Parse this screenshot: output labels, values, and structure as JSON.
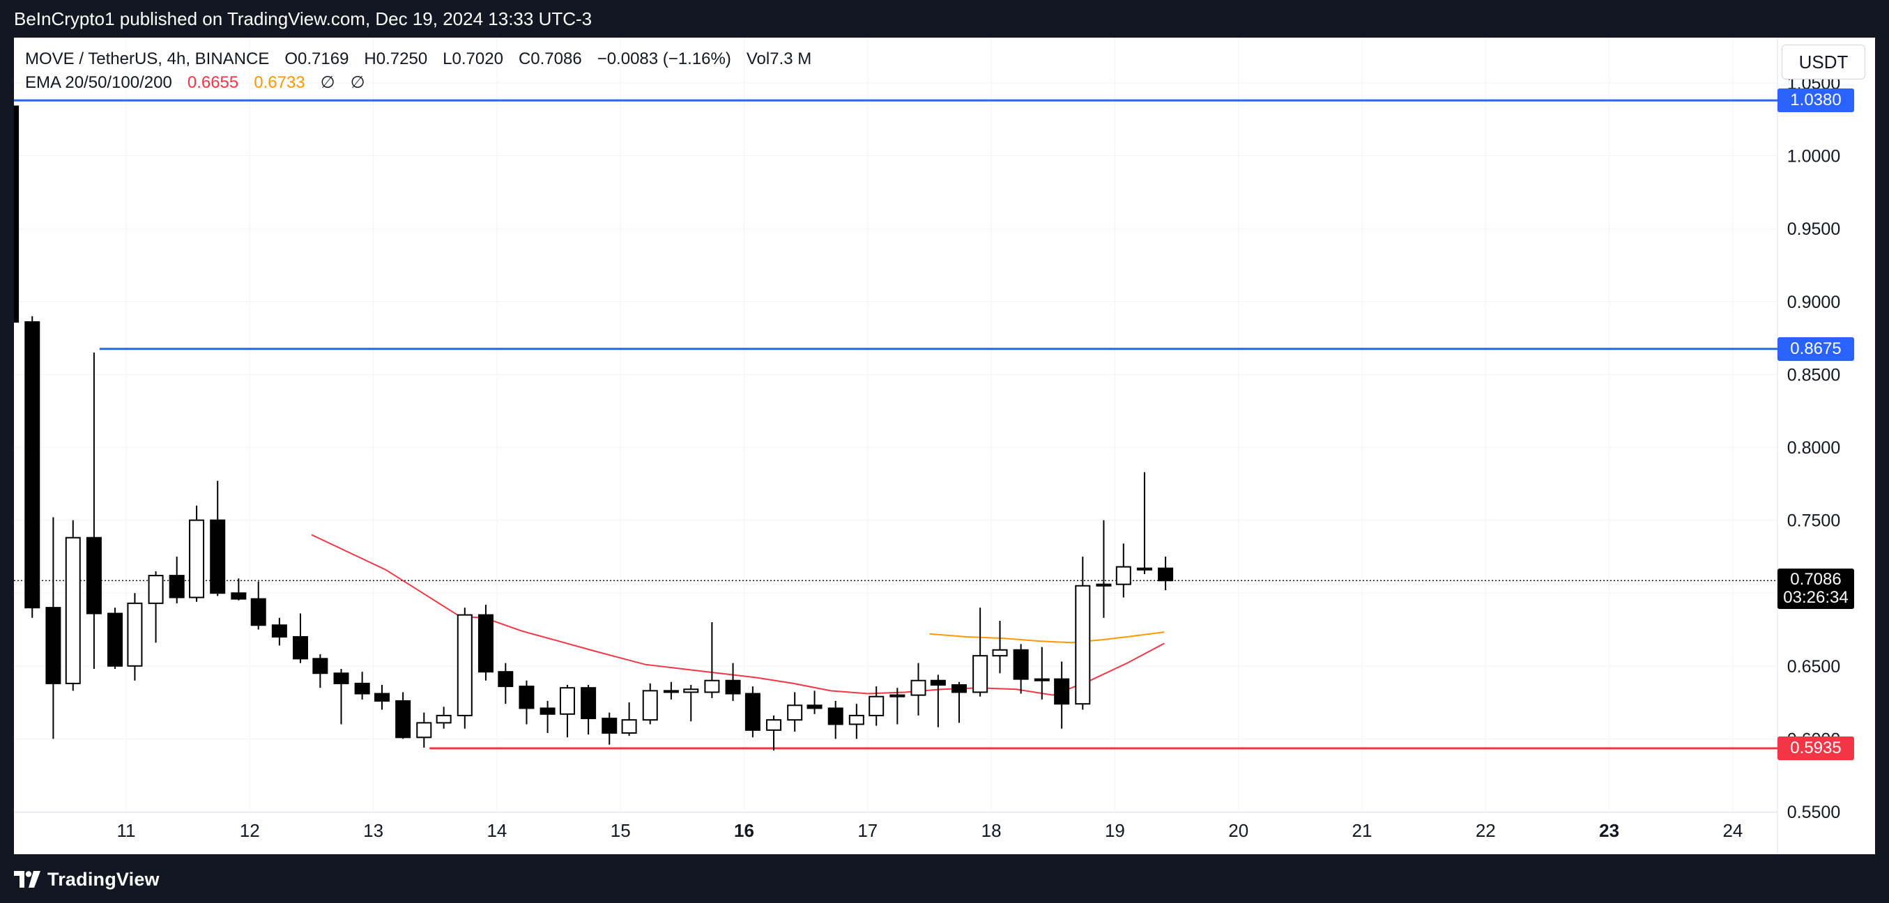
{
  "header": {
    "publish_text": "BeInCrypto1 published on TradingView.com, Dec 19, 2024 13:33 UTC-3"
  },
  "footer": {
    "brand": "TradingView"
  },
  "legend": {
    "symbol": "MOVE / TetherUS, 4h, BINANCE",
    "open": "O0.7169",
    "high": "H0.7250",
    "low": "L0.7020",
    "close": "C0.7086",
    "change": "−0.0083 (−1.16%)",
    "volume": "Vol7.3 M",
    "ema_label": "EMA 20/50/100/200",
    "ema20": "0.6655",
    "ema50": "0.6733",
    "ema100": "∅",
    "ema200": "∅"
  },
  "currency_button": "USDT",
  "price_tags": {
    "resistance_high": "1.0380",
    "resistance_mid": "0.8675",
    "current_price": "0.7086",
    "countdown": "03:26:34",
    "support": "0.5935"
  },
  "colors": {
    "up_candle": "#ffffff",
    "down_candle": "#000000",
    "resistance_line": "#2962ff",
    "support_line": "#f23645",
    "ema20": "#f23645",
    "ema50": "#ff9800"
  },
  "chart_data": {
    "type": "candlestick",
    "ylim": [
      0.54,
      1.06
    ],
    "xlim": [
      10.0,
      24.4
    ],
    "y_ticks": [
      "0.5500",
      "0.6000",
      "0.6500",
      "0.7000",
      "0.7500",
      "0.8000",
      "0.8500",
      "0.9000",
      "0.9500",
      "1.0000",
      "1.0500"
    ],
    "x_ticks": [
      {
        "label": "11",
        "x": 11,
        "bold": false
      },
      {
        "label": "12",
        "x": 12,
        "bold": false
      },
      {
        "label": "13",
        "x": 13,
        "bold": false
      },
      {
        "label": "14",
        "x": 14,
        "bold": false
      },
      {
        "label": "15",
        "x": 15,
        "bold": false
      },
      {
        "label": "16",
        "x": 16,
        "bold": true
      },
      {
        "label": "17",
        "x": 17,
        "bold": false
      },
      {
        "label": "18",
        "x": 18,
        "bold": false
      },
      {
        "label": "19",
        "x": 19,
        "bold": false
      },
      {
        "label": "20",
        "x": 20,
        "bold": false
      },
      {
        "label": "21",
        "x": 21,
        "bold": false
      },
      {
        "label": "22",
        "x": 22,
        "bold": false
      },
      {
        "label": "23",
        "x": 23,
        "bold": true
      },
      {
        "label": "24",
        "x": 24,
        "bold": false
      }
    ],
    "horizontal_levels": [
      {
        "value": 1.038,
        "color": "#2962ff",
        "x_start": 10.07
      },
      {
        "value": 0.8675,
        "color": "#2962ff",
        "x_start": 10.83
      },
      {
        "value": 0.5935,
        "color": "#f23645",
        "x_start": 13.5
      }
    ],
    "current_price": 0.7086,
    "candles": [
      {
        "x": 10.07,
        "o": 1.034,
        "h": 1.04,
        "l": 0.856,
        "c": 0.886
      },
      {
        "x": 10.24,
        "o": 0.886,
        "h": 0.89,
        "l": 0.683,
        "c": 0.69
      },
      {
        "x": 10.41,
        "o": 0.69,
        "h": 0.752,
        "l": 0.6,
        "c": 0.638
      },
      {
        "x": 10.57,
        "o": 0.638,
        "h": 0.75,
        "l": 0.633,
        "c": 0.738
      },
      {
        "x": 10.74,
        "o": 0.738,
        "h": 0.865,
        "l": 0.648,
        "c": 0.686
      },
      {
        "x": 10.91,
        "o": 0.686,
        "h": 0.69,
        "l": 0.648,
        "c": 0.65
      },
      {
        "x": 11.07,
        "o": 0.65,
        "h": 0.7,
        "l": 0.64,
        "c": 0.693
      },
      {
        "x": 11.24,
        "o": 0.693,
        "h": 0.715,
        "l": 0.666,
        "c": 0.712
      },
      {
        "x": 11.41,
        "o": 0.712,
        "h": 0.725,
        "l": 0.693,
        "c": 0.697
      },
      {
        "x": 11.57,
        "o": 0.697,
        "h": 0.76,
        "l": 0.694,
        "c": 0.75
      },
      {
        "x": 11.74,
        "o": 0.75,
        "h": 0.777,
        "l": 0.698,
        "c": 0.7
      },
      {
        "x": 11.91,
        "o": 0.7,
        "h": 0.71,
        "l": 0.695,
        "c": 0.696
      },
      {
        "x": 12.07,
        "o": 0.696,
        "h": 0.708,
        "l": 0.675,
        "c": 0.678
      },
      {
        "x": 12.24,
        "o": 0.678,
        "h": 0.683,
        "l": 0.664,
        "c": 0.67
      },
      {
        "x": 12.41,
        "o": 0.67,
        "h": 0.686,
        "l": 0.652,
        "c": 0.655
      },
      {
        "x": 12.57,
        "o": 0.655,
        "h": 0.658,
        "l": 0.635,
        "c": 0.645
      },
      {
        "x": 12.74,
        "o": 0.645,
        "h": 0.648,
        "l": 0.61,
        "c": 0.638
      },
      {
        "x": 12.91,
        "o": 0.638,
        "h": 0.646,
        "l": 0.627,
        "c": 0.631
      },
      {
        "x": 13.07,
        "o": 0.631,
        "h": 0.637,
        "l": 0.62,
        "c": 0.626
      },
      {
        "x": 13.24,
        "o": 0.626,
        "h": 0.632,
        "l": 0.6,
        "c": 0.601
      },
      {
        "x": 13.41,
        "o": 0.601,
        "h": 0.618,
        "l": 0.594,
        "c": 0.611
      },
      {
        "x": 13.57,
        "o": 0.611,
        "h": 0.622,
        "l": 0.607,
        "c": 0.616
      },
      {
        "x": 13.74,
        "o": 0.616,
        "h": 0.69,
        "l": 0.607,
        "c": 0.685
      },
      {
        "x": 13.91,
        "o": 0.685,
        "h": 0.692,
        "l": 0.64,
        "c": 0.646
      },
      {
        "x": 14.07,
        "o": 0.646,
        "h": 0.652,
        "l": 0.624,
        "c": 0.636
      },
      {
        "x": 14.24,
        "o": 0.636,
        "h": 0.64,
        "l": 0.61,
        "c": 0.621
      },
      {
        "x": 14.41,
        "o": 0.621,
        "h": 0.626,
        "l": 0.604,
        "c": 0.617
      },
      {
        "x": 14.57,
        "o": 0.617,
        "h": 0.637,
        "l": 0.601,
        "c": 0.635
      },
      {
        "x": 14.74,
        "o": 0.635,
        "h": 0.637,
        "l": 0.603,
        "c": 0.614
      },
      {
        "x": 14.91,
        "o": 0.614,
        "h": 0.618,
        "l": 0.596,
        "c": 0.604
      },
      {
        "x": 15.07,
        "o": 0.604,
        "h": 0.625,
        "l": 0.602,
        "c": 0.613
      },
      {
        "x": 15.24,
        "o": 0.613,
        "h": 0.638,
        "l": 0.61,
        "c": 0.633
      },
      {
        "x": 15.41,
        "o": 0.633,
        "h": 0.639,
        "l": 0.627,
        "c": 0.632
      },
      {
        "x": 15.57,
        "o": 0.632,
        "h": 0.637,
        "l": 0.612,
        "c": 0.634
      },
      {
        "x": 15.74,
        "o": 0.632,
        "h": 0.68,
        "l": 0.628,
        "c": 0.64
      },
      {
        "x": 15.91,
        "o": 0.64,
        "h": 0.652,
        "l": 0.626,
        "c": 0.631
      },
      {
        "x": 16.07,
        "o": 0.631,
        "h": 0.636,
        "l": 0.601,
        "c": 0.606
      },
      {
        "x": 16.24,
        "o": 0.606,
        "h": 0.616,
        "l": 0.592,
        "c": 0.613
      },
      {
        "x": 16.41,
        "o": 0.613,
        "h": 0.632,
        "l": 0.605,
        "c": 0.623
      },
      {
        "x": 16.57,
        "o": 0.623,
        "h": 0.633,
        "l": 0.617,
        "c": 0.621
      },
      {
        "x": 16.74,
        "o": 0.621,
        "h": 0.626,
        "l": 0.6,
        "c": 0.61
      },
      {
        "x": 16.91,
        "o": 0.61,
        "h": 0.624,
        "l": 0.6,
        "c": 0.616
      },
      {
        "x": 17.07,
        "o": 0.616,
        "h": 0.636,
        "l": 0.609,
        "c": 0.629
      },
      {
        "x": 17.24,
        "o": 0.629,
        "h": 0.635,
        "l": 0.61,
        "c": 0.63
      },
      {
        "x": 17.41,
        "o": 0.63,
        "h": 0.652,
        "l": 0.616,
        "c": 0.64
      },
      {
        "x": 17.57,
        "o": 0.64,
        "h": 0.644,
        "l": 0.608,
        "c": 0.637
      },
      {
        "x": 17.74,
        "o": 0.637,
        "h": 0.639,
        "l": 0.611,
        "c": 0.632
      },
      {
        "x": 17.91,
        "o": 0.632,
        "h": 0.69,
        "l": 0.629,
        "c": 0.657
      },
      {
        "x": 18.07,
        "o": 0.657,
        "h": 0.681,
        "l": 0.645,
        "c": 0.661
      },
      {
        "x": 18.24,
        "o": 0.661,
        "h": 0.665,
        "l": 0.631,
        "c": 0.641
      },
      {
        "x": 18.41,
        "o": 0.641,
        "h": 0.663,
        "l": 0.627,
        "c": 0.64
      },
      {
        "x": 18.57,
        "o": 0.641,
        "h": 0.653,
        "l": 0.607,
        "c": 0.624
      },
      {
        "x": 18.74,
        "o": 0.624,
        "h": 0.725,
        "l": 0.62,
        "c": 0.705
      },
      {
        "x": 18.91,
        "o": 0.705,
        "h": 0.75,
        "l": 0.683,
        "c": 0.706
      },
      {
        "x": 19.07,
        "o": 0.706,
        "h": 0.734,
        "l": 0.697,
        "c": 0.718
      },
      {
        "x": 19.24,
        "o": 0.716,
        "h": 0.783,
        "l": 0.713,
        "c": 0.717
      },
      {
        "x": 19.41,
        "o": 0.717,
        "h": 0.725,
        "l": 0.702,
        "c": 0.7086
      }
    ],
    "ema_series": [
      {
        "name": "EMA 20",
        "color": "#f23645",
        "points": [
          [
            12.5,
            0.74
          ],
          [
            12.8,
            0.728
          ],
          [
            13.1,
            0.716
          ],
          [
            13.4,
            0.7
          ],
          [
            13.7,
            0.684
          ],
          [
            13.9,
            0.683
          ],
          [
            14.2,
            0.674
          ],
          [
            14.5,
            0.667
          ],
          [
            14.8,
            0.66
          ],
          [
            15.2,
            0.651
          ],
          [
            15.5,
            0.648
          ],
          [
            15.8,
            0.645
          ],
          [
            16.1,
            0.642
          ],
          [
            16.4,
            0.638
          ],
          [
            16.7,
            0.633
          ],
          [
            17.0,
            0.631
          ],
          [
            17.3,
            0.632
          ],
          [
            17.6,
            0.634
          ],
          [
            17.9,
            0.635
          ],
          [
            18.2,
            0.634
          ],
          [
            18.5,
            0.63
          ],
          [
            18.8,
            0.64
          ],
          [
            19.1,
            0.652
          ],
          [
            19.4,
            0.6655
          ]
        ]
      },
      {
        "name": "EMA 50",
        "color": "#ff9800",
        "points": [
          [
            17.5,
            0.672
          ],
          [
            17.8,
            0.67
          ],
          [
            18.1,
            0.669
          ],
          [
            18.4,
            0.667
          ],
          [
            18.65,
            0.666
          ],
          [
            18.9,
            0.668
          ],
          [
            19.1,
            0.67
          ],
          [
            19.4,
            0.6733
          ]
        ]
      }
    ]
  }
}
